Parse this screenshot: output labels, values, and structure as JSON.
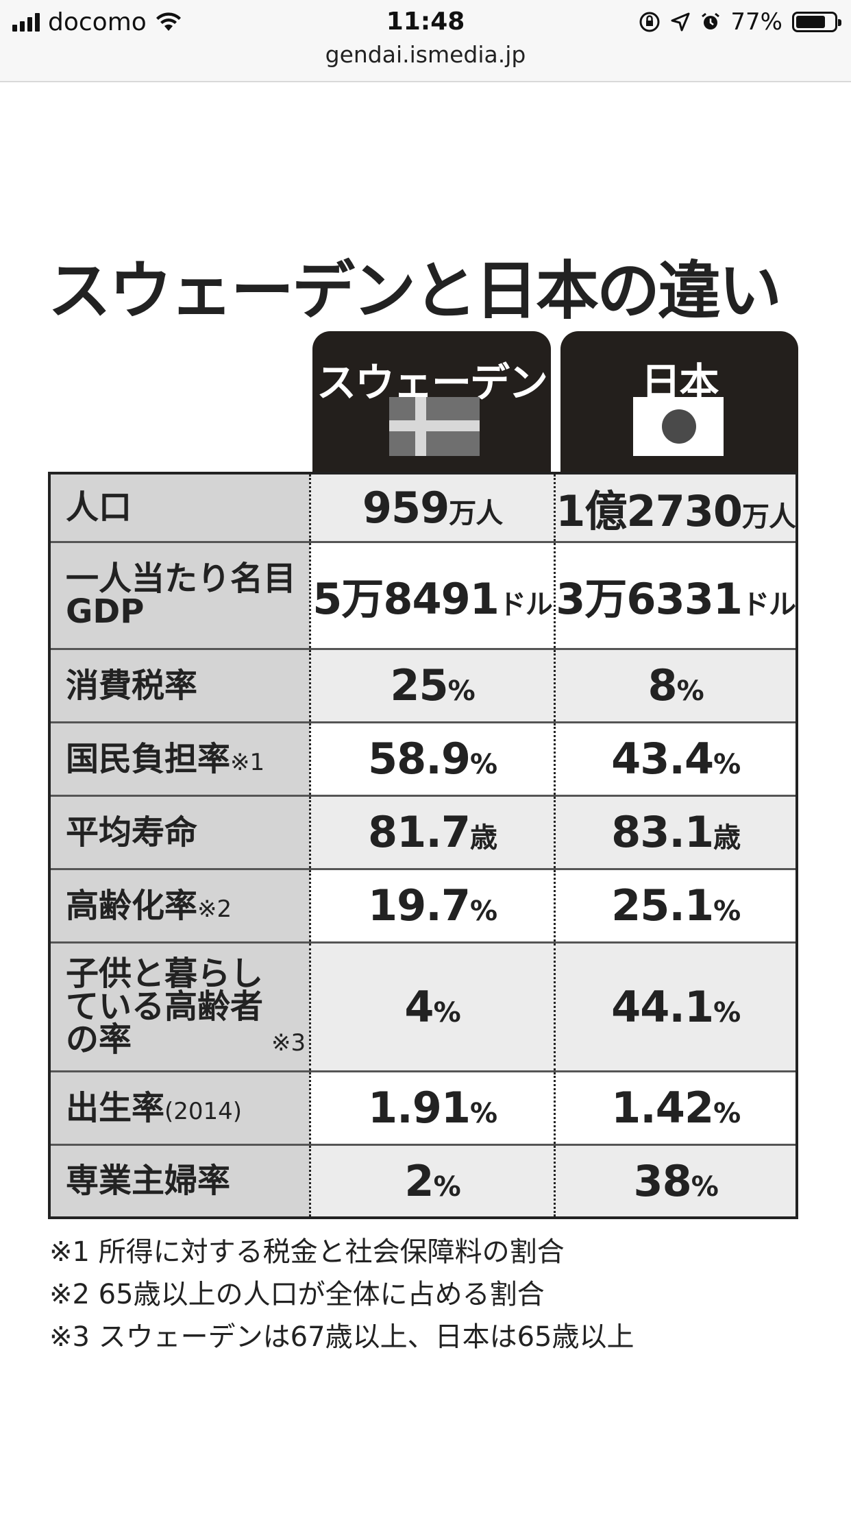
{
  "status_bar": {
    "carrier": "docomo",
    "time": "11:48",
    "battery": "77%",
    "url": "gendai.ismedia.jp"
  },
  "infographic": {
    "title": "スウェーデンと日本の違い",
    "columns": [
      "スウェーデン",
      "日本"
    ],
    "rows": [
      {
        "label": "人口",
        "note": "",
        "sweden": "959",
        "sweden_unit": "万人",
        "japan": "1億2730",
        "japan_unit": "万人"
      },
      {
        "label": "一人当たり名目GDP",
        "note": "",
        "sweden": "5万8491",
        "sweden_unit": "ドル",
        "japan": "3万6331",
        "japan_unit": "ドル"
      },
      {
        "label": "消費税率",
        "note": "",
        "sweden": "25",
        "sweden_unit": "%",
        "japan": "8",
        "japan_unit": "%"
      },
      {
        "label": "国民負担率",
        "note": "※1",
        "sweden": "58.9",
        "sweden_unit": "%",
        "japan": "43.4",
        "japan_unit": "%"
      },
      {
        "label": "平均寿命",
        "note": "",
        "sweden": "81.7",
        "sweden_unit": "歳",
        "japan": "83.1",
        "japan_unit": "歳"
      },
      {
        "label": "高齢化率",
        "note": "※2",
        "sweden": "19.7",
        "sweden_unit": "%",
        "japan": "25.1",
        "japan_unit": "%"
      },
      {
        "label": "子供と暮らしている高齢者の率",
        "note": "※3",
        "sweden": "4",
        "sweden_unit": "%",
        "japan": "44.1",
        "japan_unit": "%"
      },
      {
        "label": "出生率",
        "note": "(2014)",
        "sweden": "1.91",
        "sweden_unit": "%",
        "japan": "1.42",
        "japan_unit": "%"
      },
      {
        "label": "専業主婦率",
        "note": "",
        "sweden": "2",
        "sweden_unit": "%",
        "japan": "38",
        "japan_unit": "%"
      }
    ],
    "footnotes": [
      "※1 所得に対する税金と社会保障料の割合",
      "※2 65歳以上の人口が全体に占める割合",
      "※3 スウェーデンは67歳以上、日本は65歳以上"
    ]
  },
  "colors": {
    "header_bg": "#231f1c",
    "label_bg": "#d4d4d4",
    "row_alt_bg": "#ececec"
  }
}
